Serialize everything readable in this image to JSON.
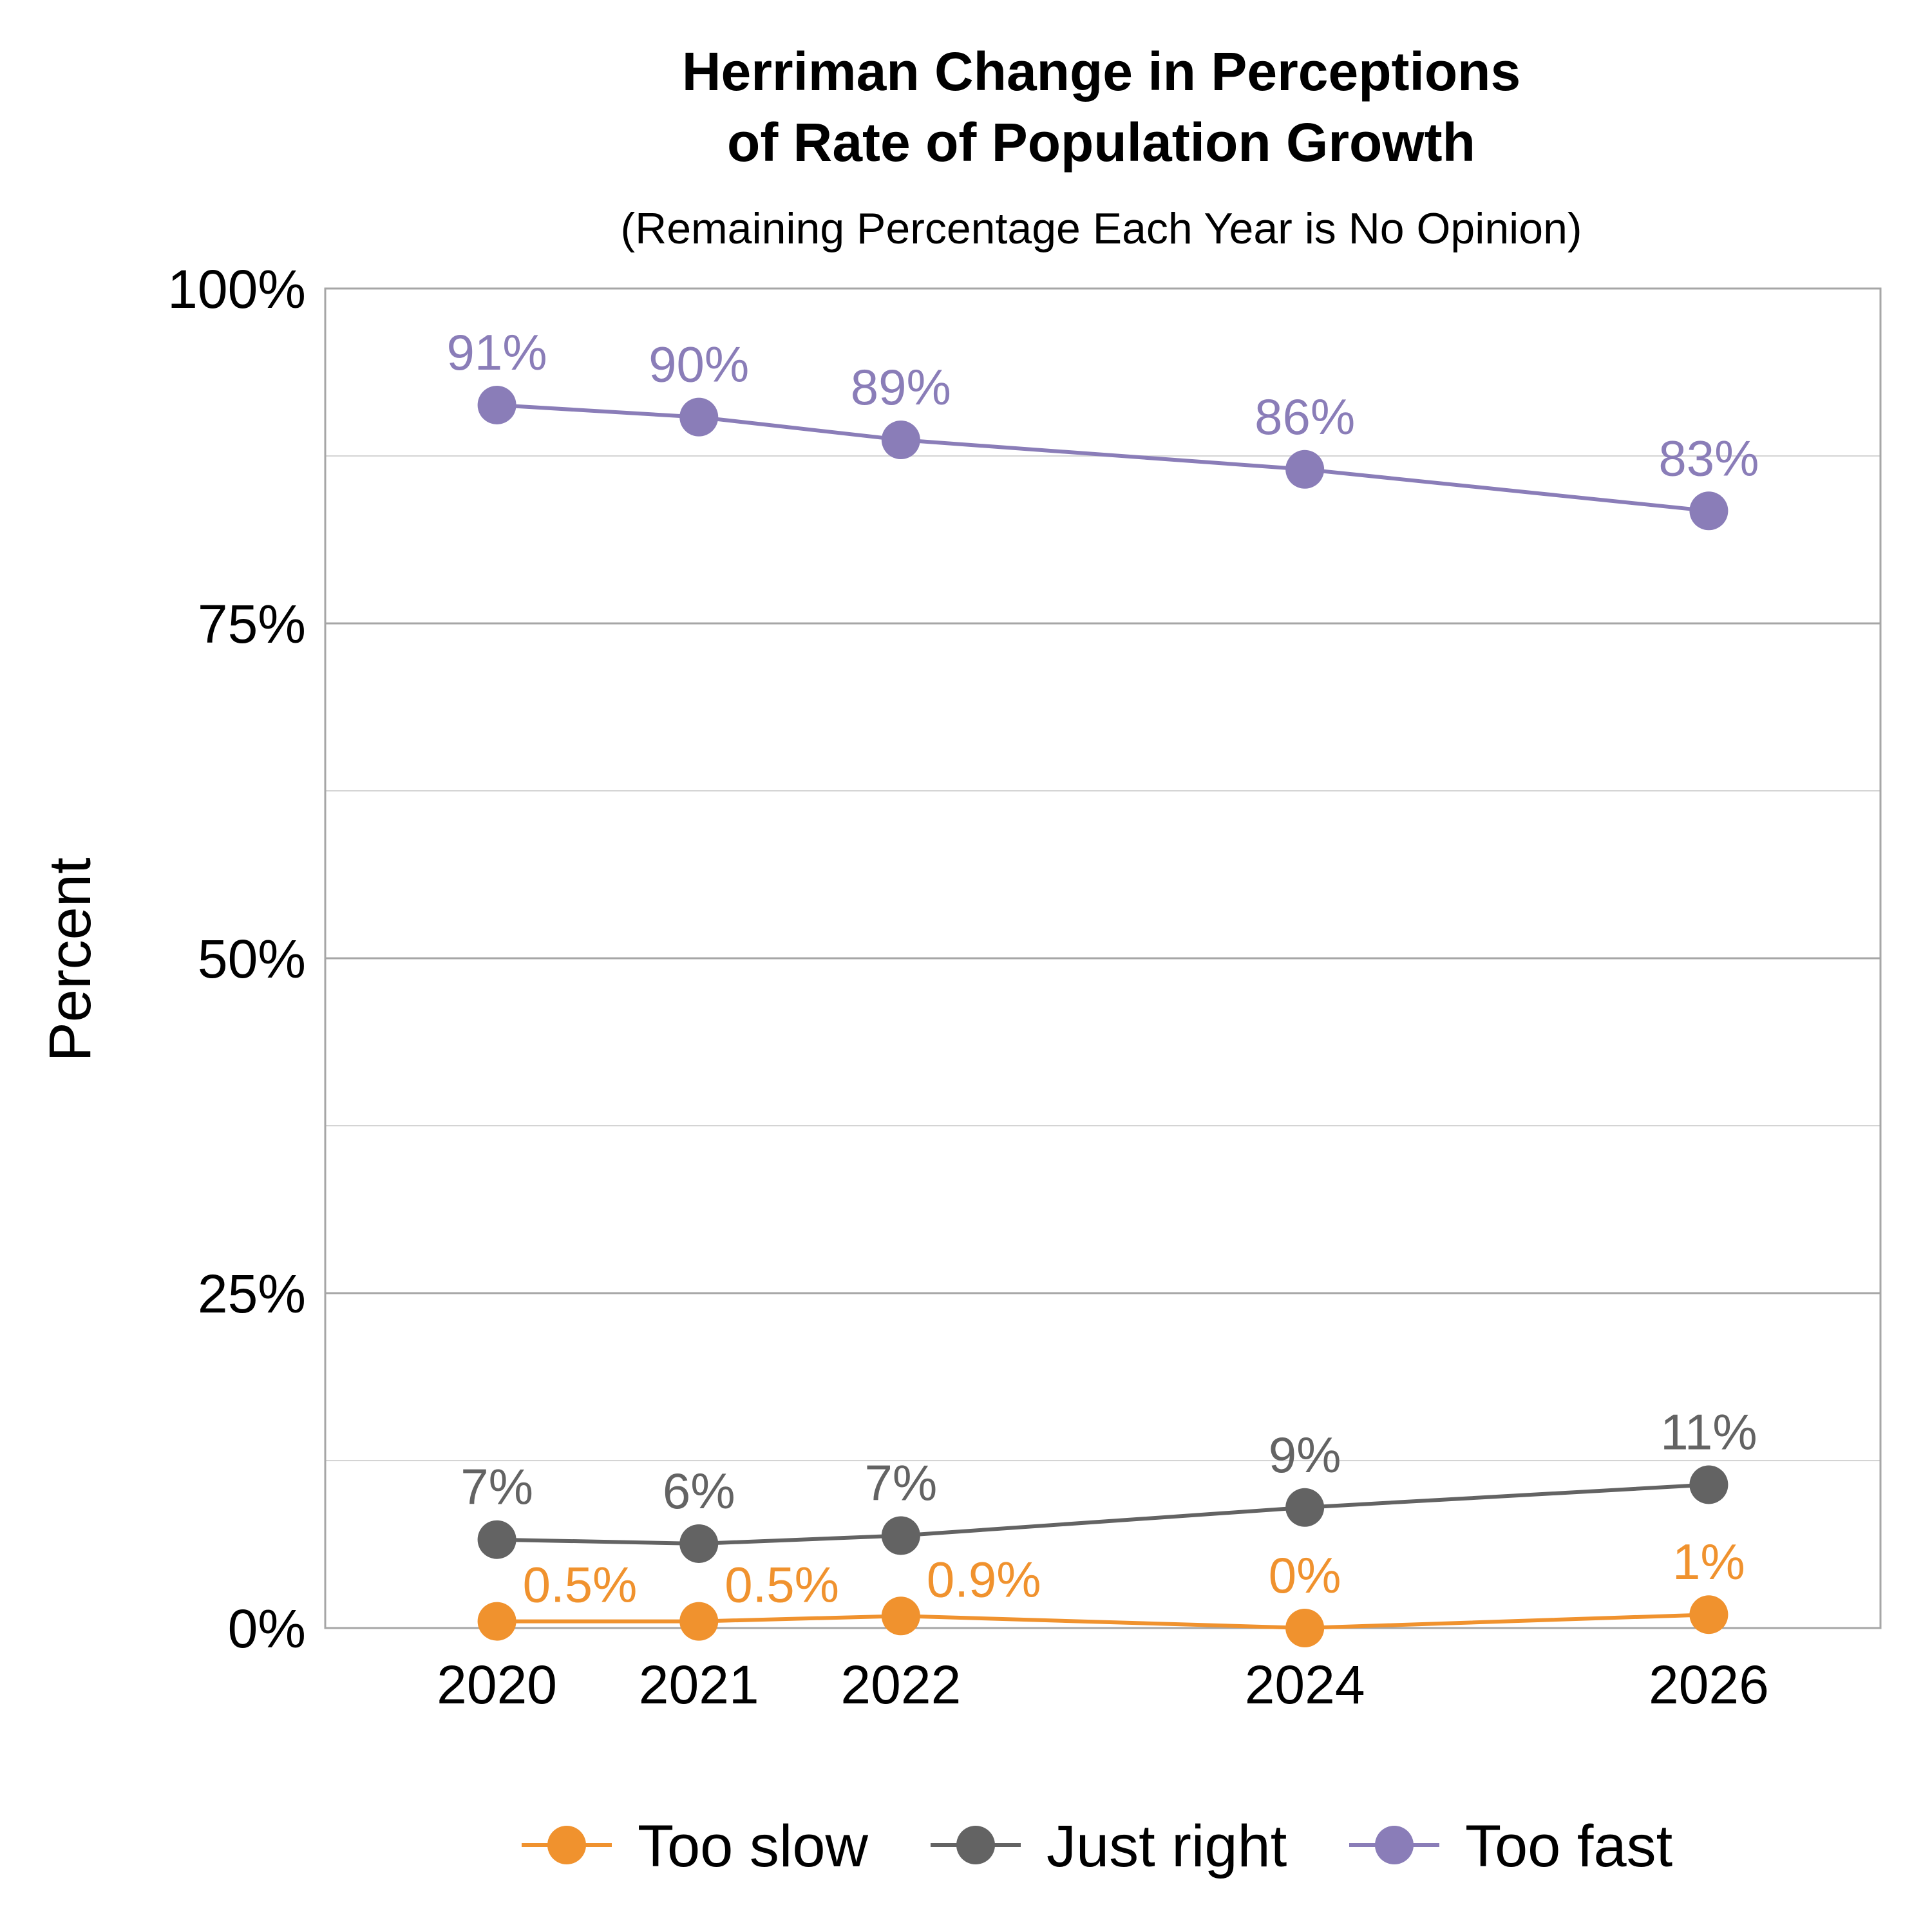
{
  "chart_data": {
    "type": "line",
    "title_lines": [
      "Herriman Change in Perceptions",
      "of Rate of Population Growth"
    ],
    "subtitle": "(Remaining Percentage Each Year is No Opinion)",
    "ylabel": "Percent",
    "xlabel": "",
    "x": [
      2020,
      2021,
      2022,
      2024,
      2026
    ],
    "x_tick_labels": [
      "2020",
      "2021",
      "2022",
      "2024",
      "2026"
    ],
    "xlim": [
      2019.15,
      2026.85
    ],
    "ylim": [
      0,
      100
    ],
    "y_ticks": [
      0,
      25,
      50,
      75,
      100
    ],
    "y_tick_labels": [
      "0%",
      "25%",
      "50%",
      "75%",
      "100%"
    ],
    "y_minor_gridlines": [
      12.5,
      37.5,
      62.5,
      87.5
    ],
    "grid": true,
    "legend_position": "bottom",
    "series": [
      {
        "name": "Too slow",
        "color": "#F0922E",
        "values": [
          0.5,
          0.5,
          0.9,
          0,
          1
        ],
        "labels": [
          "0.5%",
          "0.5%",
          "0.9%",
          "0%",
          "1%"
        ],
        "label_placement": [
          "upper-right",
          "upper-right",
          "upper-right",
          "above",
          "above"
        ]
      },
      {
        "name": "Just right",
        "color": "#636363",
        "values": [
          6.6,
          6.3,
          6.9,
          9,
          10.7
        ],
        "labels": [
          "7%",
          "6%",
          "7%",
          "9%",
          "11%"
        ],
        "label_placement": [
          "above",
          "above",
          "above",
          "above",
          "above"
        ]
      },
      {
        "name": "Too fast",
        "color": "#8A7DB8",
        "values": [
          91.3,
          90.4,
          88.7,
          86.5,
          83.4
        ],
        "labels": [
          "91%",
          "90%",
          "89%",
          "86%",
          "83%"
        ],
        "label_placement": [
          "above",
          "above",
          "above",
          "above",
          "above"
        ]
      }
    ]
  }
}
